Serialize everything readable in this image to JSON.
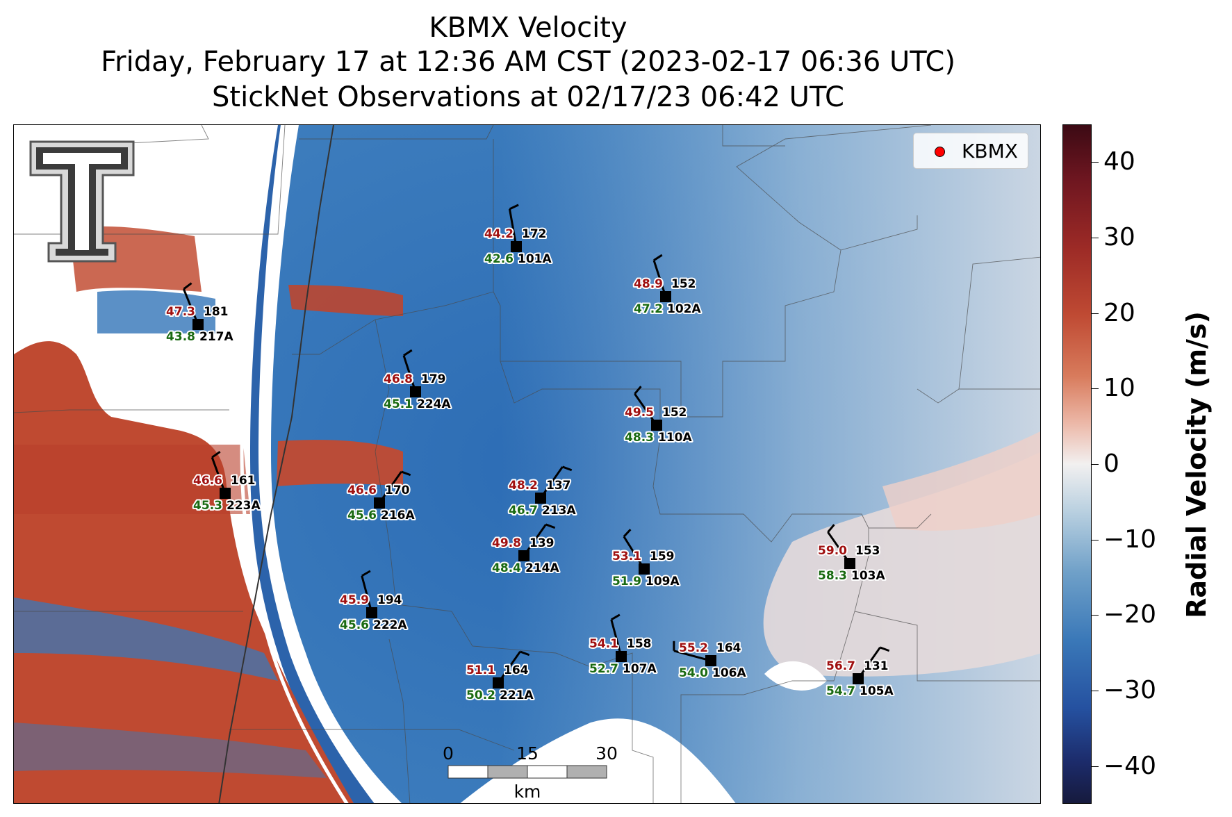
{
  "title": {
    "line1": "KBMX Velocity",
    "line2": "Friday, February 17 at 12:36 AM CST (2023-02-17 06:36 UTC)",
    "line3": "StickNet Observations at 02/17/23 06:42 UTC"
  },
  "legend": {
    "label": "KBMX",
    "marker_color": "#ff0000"
  },
  "colorbar": {
    "title": "Radial Velocity (m/s)",
    "min": -45,
    "max": 45,
    "ticks": [
      {
        "value": 40,
        "label": "40"
      },
      {
        "value": 30,
        "label": "30"
      },
      {
        "value": 20,
        "label": "20"
      },
      {
        "value": 10,
        "label": "10"
      },
      {
        "value": 0,
        "label": "0"
      },
      {
        "value": -10,
        "label": "−10"
      },
      {
        "value": -20,
        "label": "−20"
      },
      {
        "value": -30,
        "label": "−30"
      },
      {
        "value": -40,
        "label": "−40"
      }
    ]
  },
  "scalebar": {
    "labels": [
      "0",
      "15",
      "30"
    ],
    "unit": "km"
  },
  "logo": {
    "icon": "texas-tech-double-t-logo"
  },
  "colors": {
    "inbound": "#2e6db5",
    "outbound": "#c0442c",
    "label_red": "#a01010",
    "label_green": "#1a6a12"
  },
  "stations": [
    {
      "id": "101A",
      "red": "44.2",
      "dir": "172",
      "green": "42.6"
    },
    {
      "id": "102A",
      "red": "48.9",
      "dir": "152",
      "green": "47.2"
    },
    {
      "id": "217A",
      "red": "47.3",
      "dir": "181",
      "green": "43.8"
    },
    {
      "id": "224A",
      "red": "46.8",
      "dir": "179",
      "green": "45.1"
    },
    {
      "id": "110A",
      "red": "49.5",
      "dir": "152",
      "green": "48.3"
    },
    {
      "id": "223A",
      "red": "46.6",
      "dir": "161",
      "green": "45.3"
    },
    {
      "id": "216A",
      "red": "46.6",
      "dir": "170",
      "green": "45.6"
    },
    {
      "id": "213A",
      "red": "48.2",
      "dir": "137",
      "green": "46.7"
    },
    {
      "id": "214A",
      "red": "49.8",
      "dir": "139",
      "green": "48.4"
    },
    {
      "id": "109A",
      "red": "53.1",
      "dir": "159",
      "green": "51.9"
    },
    {
      "id": "103A",
      "red": "59.0",
      "dir": "153",
      "green": "58.3"
    },
    {
      "id": "222A",
      "red": "45.9",
      "dir": "194",
      "green": "45.6"
    },
    {
      "id": "107A",
      "red": "54.1",
      "dir": "158",
      "green": "52.7"
    },
    {
      "id": "106A",
      "red": "55.2",
      "dir": "164",
      "green": "54.0"
    },
    {
      "id": "221A",
      "red": "51.1",
      "dir": "164",
      "green": "50.2"
    },
    {
      "id": "105A",
      "red": "56.7",
      "dir": "131",
      "green": "54.7"
    }
  ]
}
